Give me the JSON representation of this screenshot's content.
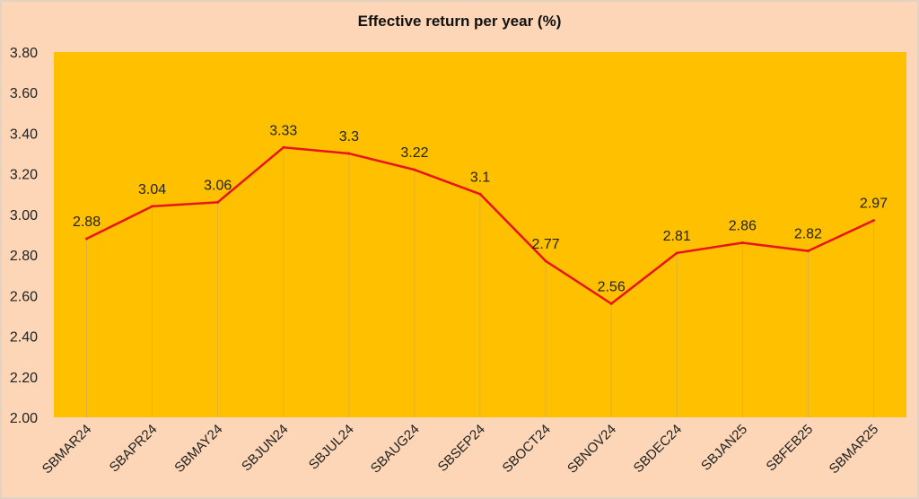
{
  "chart_data": {
    "type": "line",
    "title": "Effective  return per year (%)",
    "xlabel": "",
    "ylabel": "",
    "ylim": [
      2.0,
      3.8
    ],
    "yticks": [
      "2.00",
      "2.20",
      "2.40",
      "2.60",
      "2.80",
      "3.00",
      "3.20",
      "3.40",
      "3.60",
      "3.80"
    ],
    "categories": [
      "SBMAR24",
      "SBAPR24",
      "SBMAY24",
      "SBJUN24",
      "SBJUL24",
      "SBAUG24",
      "SBSEP24",
      "SBOCT24",
      "SBNOV24",
      "SBDEC24",
      "SBJAN25",
      "SBFEB25",
      "SBMAR25"
    ],
    "values": [
      2.88,
      3.04,
      3.06,
      3.33,
      3.3,
      3.22,
      3.1,
      2.77,
      2.56,
      2.81,
      2.86,
      2.82,
      2.97
    ],
    "data_labels": [
      "2.88",
      "3.04",
      "3.06",
      "3.33",
      "3.3",
      "3.22",
      "3.1",
      "2.77",
      "2.56",
      "2.81",
      "2.86",
      "2.82",
      "2.97"
    ],
    "grid": false,
    "legend": "none",
    "colors": {
      "plot_bg": "#ffc000",
      "line": "#e8141c",
      "drop_lines": "#bfa070"
    }
  }
}
